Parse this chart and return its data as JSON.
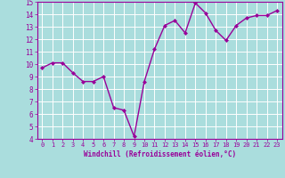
{
  "x": [
    0,
    1,
    2,
    3,
    4,
    5,
    6,
    7,
    8,
    9,
    10,
    11,
    12,
    13,
    14,
    15,
    16,
    17,
    18,
    19,
    20,
    21,
    22,
    23
  ],
  "y": [
    9.7,
    10.1,
    10.1,
    9.3,
    8.6,
    8.6,
    9.0,
    6.5,
    6.3,
    4.2,
    8.6,
    11.2,
    13.1,
    13.5,
    12.5,
    14.9,
    14.1,
    12.7,
    11.9,
    13.1,
    13.7,
    13.9,
    13.9,
    14.3
  ],
  "line_color": "#990099",
  "marker": "D",
  "marker_size": 2.0,
  "bg_color": "#aadddd",
  "grid_color": "#ffffff",
  "xlabel": "Windchill (Refroidissement éolien,°C)",
  "xlabel_color": "#990099",
  "tick_color": "#990099",
  "ylim": [
    4,
    15
  ],
  "xlim_min": -0.5,
  "xlim_max": 23.5,
  "yticks": [
    4,
    5,
    6,
    7,
    8,
    9,
    10,
    11,
    12,
    13,
    14,
    15
  ],
  "xticks": [
    0,
    1,
    2,
    3,
    4,
    5,
    6,
    7,
    8,
    9,
    10,
    11,
    12,
    13,
    14,
    15,
    16,
    17,
    18,
    19,
    20,
    21,
    22,
    23
  ],
  "line_width": 1.0,
  "tick_fontsize_x": 5.0,
  "tick_fontsize_y": 5.5,
  "xlabel_fontsize": 5.5,
  "spine_color": "#990099"
}
